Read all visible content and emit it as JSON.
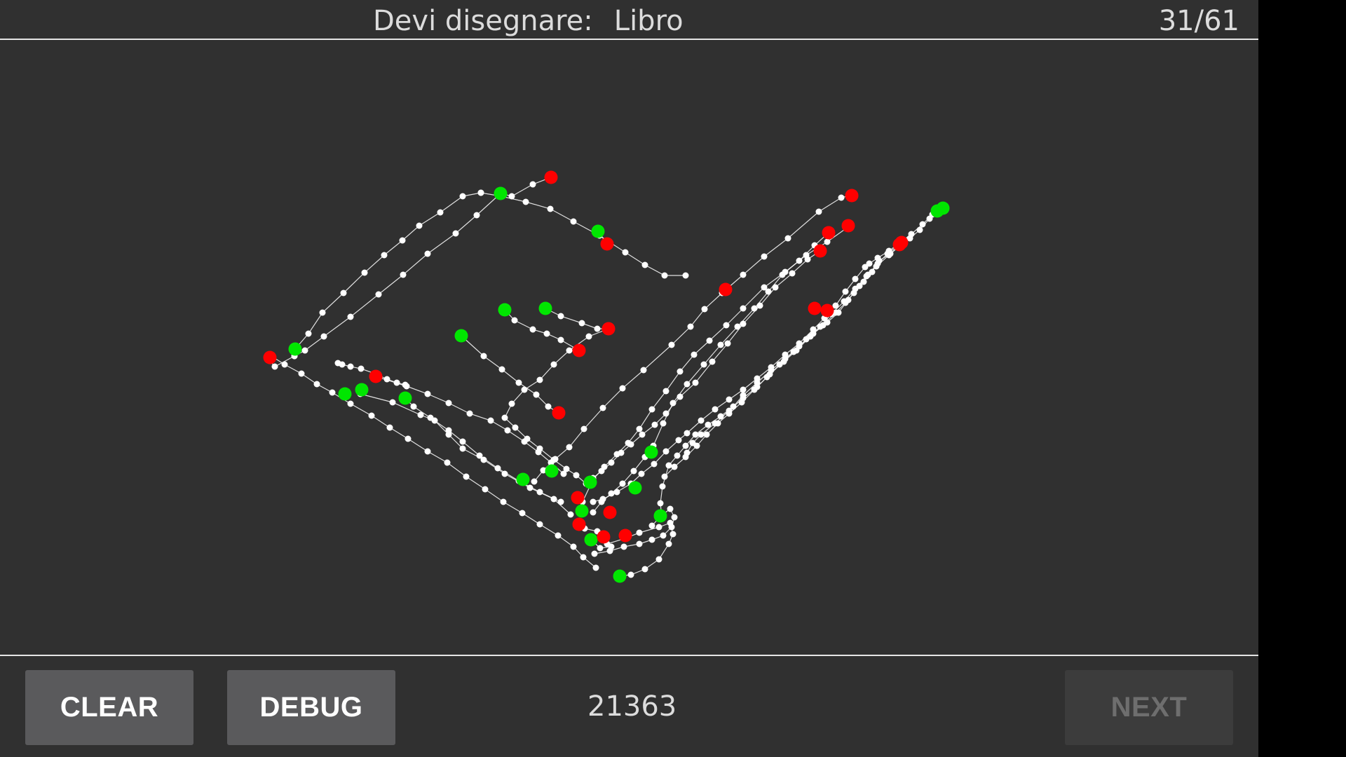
{
  "header": {
    "prompt_label": "Devi disegnare:",
    "target_word": "Libro",
    "progress": "31/61"
  },
  "canvas": {
    "stroke_color": "#ffffff",
    "start_point_color": "#00e600",
    "end_point_color": "#ff0000"
  },
  "footer": {
    "clear_label": "CLEAR",
    "debug_label": "DEBUG",
    "score": "21363",
    "next_label": "NEXT"
  }
}
